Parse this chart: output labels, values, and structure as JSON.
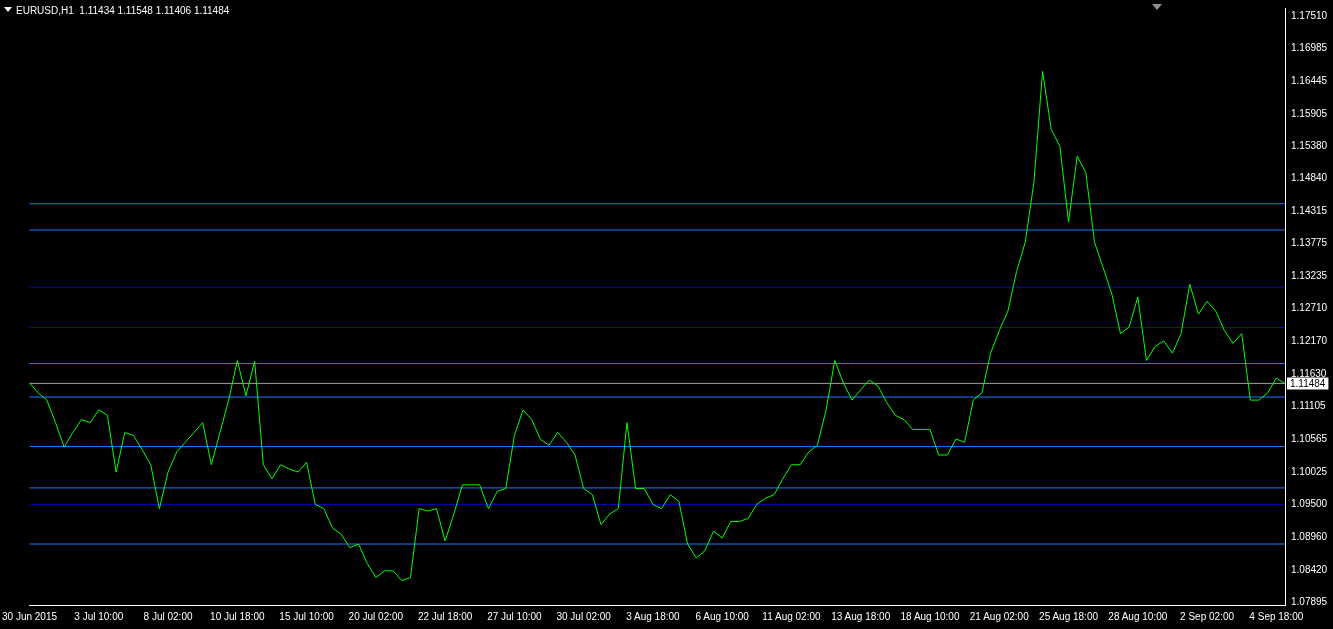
{
  "chart_data": {
    "type": "line",
    "title": "EURUSD,H1  1.11434 1.11548 1.11406 1.11484",
    "categories": [
      "30 Jun 2015",
      null,
      null,
      null,
      null,
      null,
      null,
      null,
      "3 Jul 10:00",
      null,
      null,
      null,
      null,
      null,
      null,
      null,
      "8 Jul 02:00",
      null,
      null,
      null,
      null,
      null,
      null,
      null,
      "10 Jul 18:00",
      null,
      null,
      null,
      null,
      null,
      null,
      null,
      "15 Jul 10:00",
      null,
      null,
      null,
      null,
      null,
      null,
      null,
      "20 Jul 02:00",
      null,
      null,
      null,
      null,
      null,
      null,
      null,
      "22 Jul 18:00",
      null,
      null,
      null,
      null,
      null,
      null,
      null,
      "27 Jul 10:00",
      null,
      null,
      null,
      null,
      null,
      null,
      null,
      "30 Jul 02:00",
      null,
      null,
      null,
      null,
      null,
      null,
      null,
      "3 Aug 18:00",
      null,
      null,
      null,
      null,
      null,
      null,
      null,
      "6 Aug 10:00",
      null,
      null,
      null,
      null,
      null,
      null,
      null,
      "11 Aug 02:00",
      null,
      null,
      null,
      null,
      null,
      null,
      null,
      "13 Aug 18:00",
      null,
      null,
      null,
      null,
      null,
      null,
      null,
      "18 Aug 10:00",
      null,
      null,
      null,
      null,
      null,
      null,
      null,
      "21 Aug 02:00",
      null,
      null,
      null,
      null,
      null,
      null,
      null,
      "25 Aug 18:00",
      null,
      null,
      null,
      null,
      null,
      null,
      null,
      "28 Aug 10:00",
      null,
      null,
      null,
      null,
      null,
      null,
      null,
      "2 Sep 02:00",
      null,
      null,
      null,
      null,
      null,
      null,
      null,
      "4 Sep 18:00",
      null
    ],
    "series": [
      {
        "color": "#00ff00",
        "values": [
          1.1149,
          1.1133,
          1.1121,
          1.1084,
          1.1044,
          1.1068,
          1.1089,
          1.1084,
          1.1105,
          1.1096,
          1.1003,
          1.1068,
          1.1063,
          1.104,
          1.1015,
          1.0943,
          1.1003,
          1.1036,
          1.1052,
          1.1068,
          1.1084,
          1.1015,
          1.1068,
          1.1121,
          1.1186,
          1.1128,
          1.1185,
          1.1015,
          1.0992,
          1.1015,
          1.1008,
          1.1003,
          1.1019,
          1.095,
          1.0943,
          1.0911,
          1.0901,
          1.0879,
          1.0885,
          1.0853,
          1.083,
          1.0841,
          1.0841,
          1.0825,
          1.083,
          1.0943,
          1.0939,
          1.0943,
          1.089,
          1.0934,
          1.0982,
          1.0982,
          1.0982,
          1.0943,
          1.0971,
          1.0976,
          1.1063,
          1.1105,
          1.1089,
          1.1057,
          1.1047,
          1.1068,
          1.1052,
          1.1031,
          1.0976,
          1.0966,
          1.0917,
          1.0934,
          1.0943,
          1.1084,
          1.0976,
          1.0976,
          1.095,
          1.0943,
          1.0966,
          1.0955,
          1.0885,
          1.0862,
          1.0874,
          1.0906,
          1.0895,
          1.0922,
          1.0922,
          1.0927,
          1.095,
          1.096,
          1.0966,
          1.0992,
          1.1015,
          1.1015,
          1.1036,
          1.1047,
          1.1105,
          1.1186,
          1.1149,
          1.1121,
          1.1138,
          1.1154,
          1.1144,
          1.1117,
          1.1096,
          1.1089,
          1.1073,
          1.1073,
          1.1073,
          1.1031,
          1.1031,
          1.1057,
          1.1052,
          1.1121,
          1.1133,
          1.1198,
          1.1235,
          1.1267,
          1.1332,
          1.138,
          1.1478,
          1.166,
          1.1565,
          1.1537,
          1.1413,
          1.1521,
          1.1494,
          1.138,
          1.1338,
          1.1295,
          1.123,
          1.1241,
          1.129,
          1.1186,
          1.1209,
          1.1218,
          1.1198,
          1.123,
          1.1311,
          1.1262,
          1.1283,
          1.1267,
          1.1235,
          1.1214,
          1.123,
          1.1121,
          1.1121,
          1.1133,
          1.1157,
          1.1148
        ]
      }
    ],
    "ylim": [
      1.0785,
      1.1764
    ],
    "yticks": [
      {
        "value": 1.07895,
        "label": "1.07895"
      },
      {
        "value": 1.0842,
        "label": "1.08420"
      },
      {
        "value": 1.0896,
        "label": "1.08960"
      },
      {
        "value": 1.095,
        "label": "1.09500"
      },
      {
        "value": 1.10025,
        "label": "1.10025"
      },
      {
        "value": 1.10565,
        "label": "1.10565"
      },
      {
        "value": 1.11105,
        "label": "1.11105"
      },
      {
        "value": 1.1163,
        "label": "1.11630"
      },
      {
        "value": 1.1217,
        "label": "1.12170"
      },
      {
        "value": 1.1271,
        "label": "1.12710"
      },
      {
        "value": 1.13235,
        "label": "1.13235"
      },
      {
        "value": 1.13775,
        "label": "1.13775"
      },
      {
        "value": 1.14315,
        "label": "1.14315"
      },
      {
        "value": 1.1484,
        "label": "1.14840"
      },
      {
        "value": 1.1538,
        "label": "1.15380"
      },
      {
        "value": 1.15905,
        "label": "1.15905"
      },
      {
        "value": 1.16445,
        "label": "1.16445"
      },
      {
        "value": 1.16985,
        "label": "1.16985"
      },
      {
        "value": 1.1751,
        "label": "1.17510"
      }
    ],
    "ref_lines": [
      {
        "axis": "y",
        "value": 1.1443,
        "color": "#1e78ff"
      },
      {
        "axis": "y",
        "value": 1.14,
        "color": "#1e78ff"
      },
      {
        "axis": "y",
        "value": 1.1306,
        "color": "#0000c0"
      },
      {
        "axis": "y",
        "value": 1.124,
        "color": "#0000e0"
      },
      {
        "axis": "y",
        "value": 1.1181,
        "color": "#1e78ff"
      },
      {
        "axis": "y",
        "value": 1.11484,
        "label": "1.11484",
        "color": "#a0a0a0"
      },
      {
        "axis": "y",
        "value": 1.1126,
        "color": "#1e78ff"
      },
      {
        "axis": "y",
        "value": 1.1045,
        "color": "#1e78ff"
      },
      {
        "axis": "y",
        "value": 1.0977,
        "color": "#1e78ff"
      },
      {
        "axis": "y",
        "value": 1.095,
        "color": "#0000c0"
      },
      {
        "axis": "y",
        "value": 1.0885,
        "color": "#1e78ff"
      }
    ],
    "grid": false,
    "legend": false,
    "marker": "none",
    "line_style": "solid"
  }
}
